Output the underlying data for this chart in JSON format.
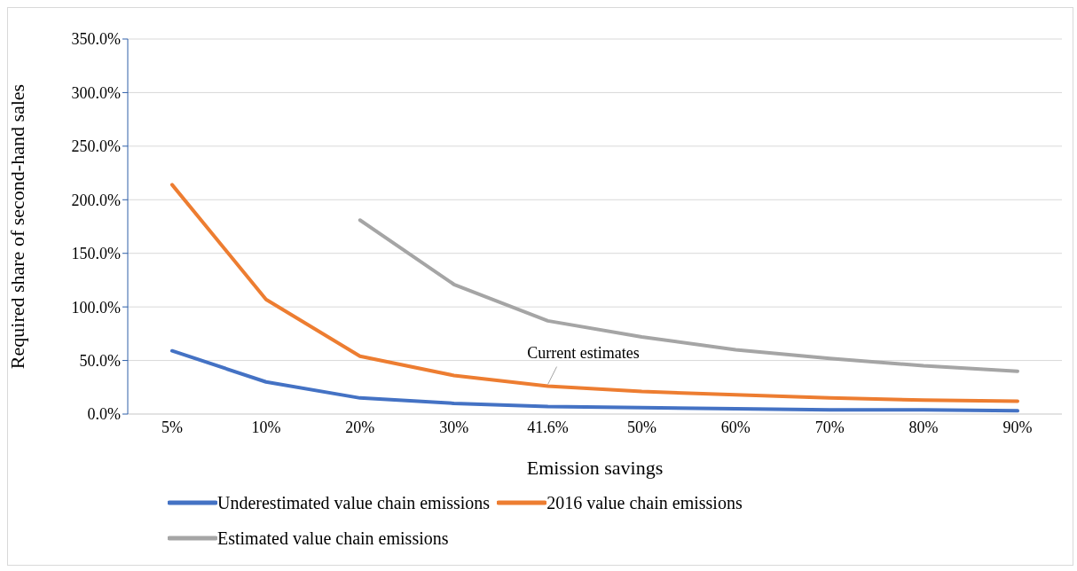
{
  "chart_data": {
    "type": "line",
    "xlabel": "Emission savings",
    "ylabel": "Required share of second-hand sales",
    "categories": [
      "5%",
      "10%",
      "20%",
      "30%",
      "41.6%",
      "50%",
      "60%",
      "70%",
      "80%",
      "90%"
    ],
    "series": [
      {
        "name": "Underestimated value chain emissions",
        "color": "#4472c4",
        "values": [
          59,
          30,
          15,
          10,
          7,
          6,
          5,
          4,
          4,
          3
        ]
      },
      {
        "name": "2016 value chain emissions",
        "color": "#ed7d31",
        "values": [
          214,
          107,
          54,
          36,
          26,
          21,
          18,
          15,
          13,
          12
        ]
      },
      {
        "name": "Estimated value chain emissions",
        "color": "#a5a5a5",
        "values": [
          null,
          null,
          181,
          121,
          87,
          72,
          60,
          52,
          45,
          40
        ]
      }
    ],
    "ylim": [
      0,
      350
    ],
    "yticks": [
      {
        "value": 0,
        "label": "0.0%"
      },
      {
        "value": 50,
        "label": "50.0%"
      },
      {
        "value": 100,
        "label": "100.0%"
      },
      {
        "value": 150,
        "label": "150.0%"
      },
      {
        "value": 200,
        "label": "200.0%"
      },
      {
        "value": 250,
        "label": "250.0%"
      },
      {
        "value": 300,
        "label": "300.0%"
      },
      {
        "value": 350,
        "label": "350.0%"
      }
    ],
    "grid": "y",
    "legend": "bottom",
    "marker": "none",
    "line_style": "solid",
    "annotations": [
      {
        "text": "Current estimates",
        "x": "41.6%",
        "y": 26
      }
    ]
  }
}
